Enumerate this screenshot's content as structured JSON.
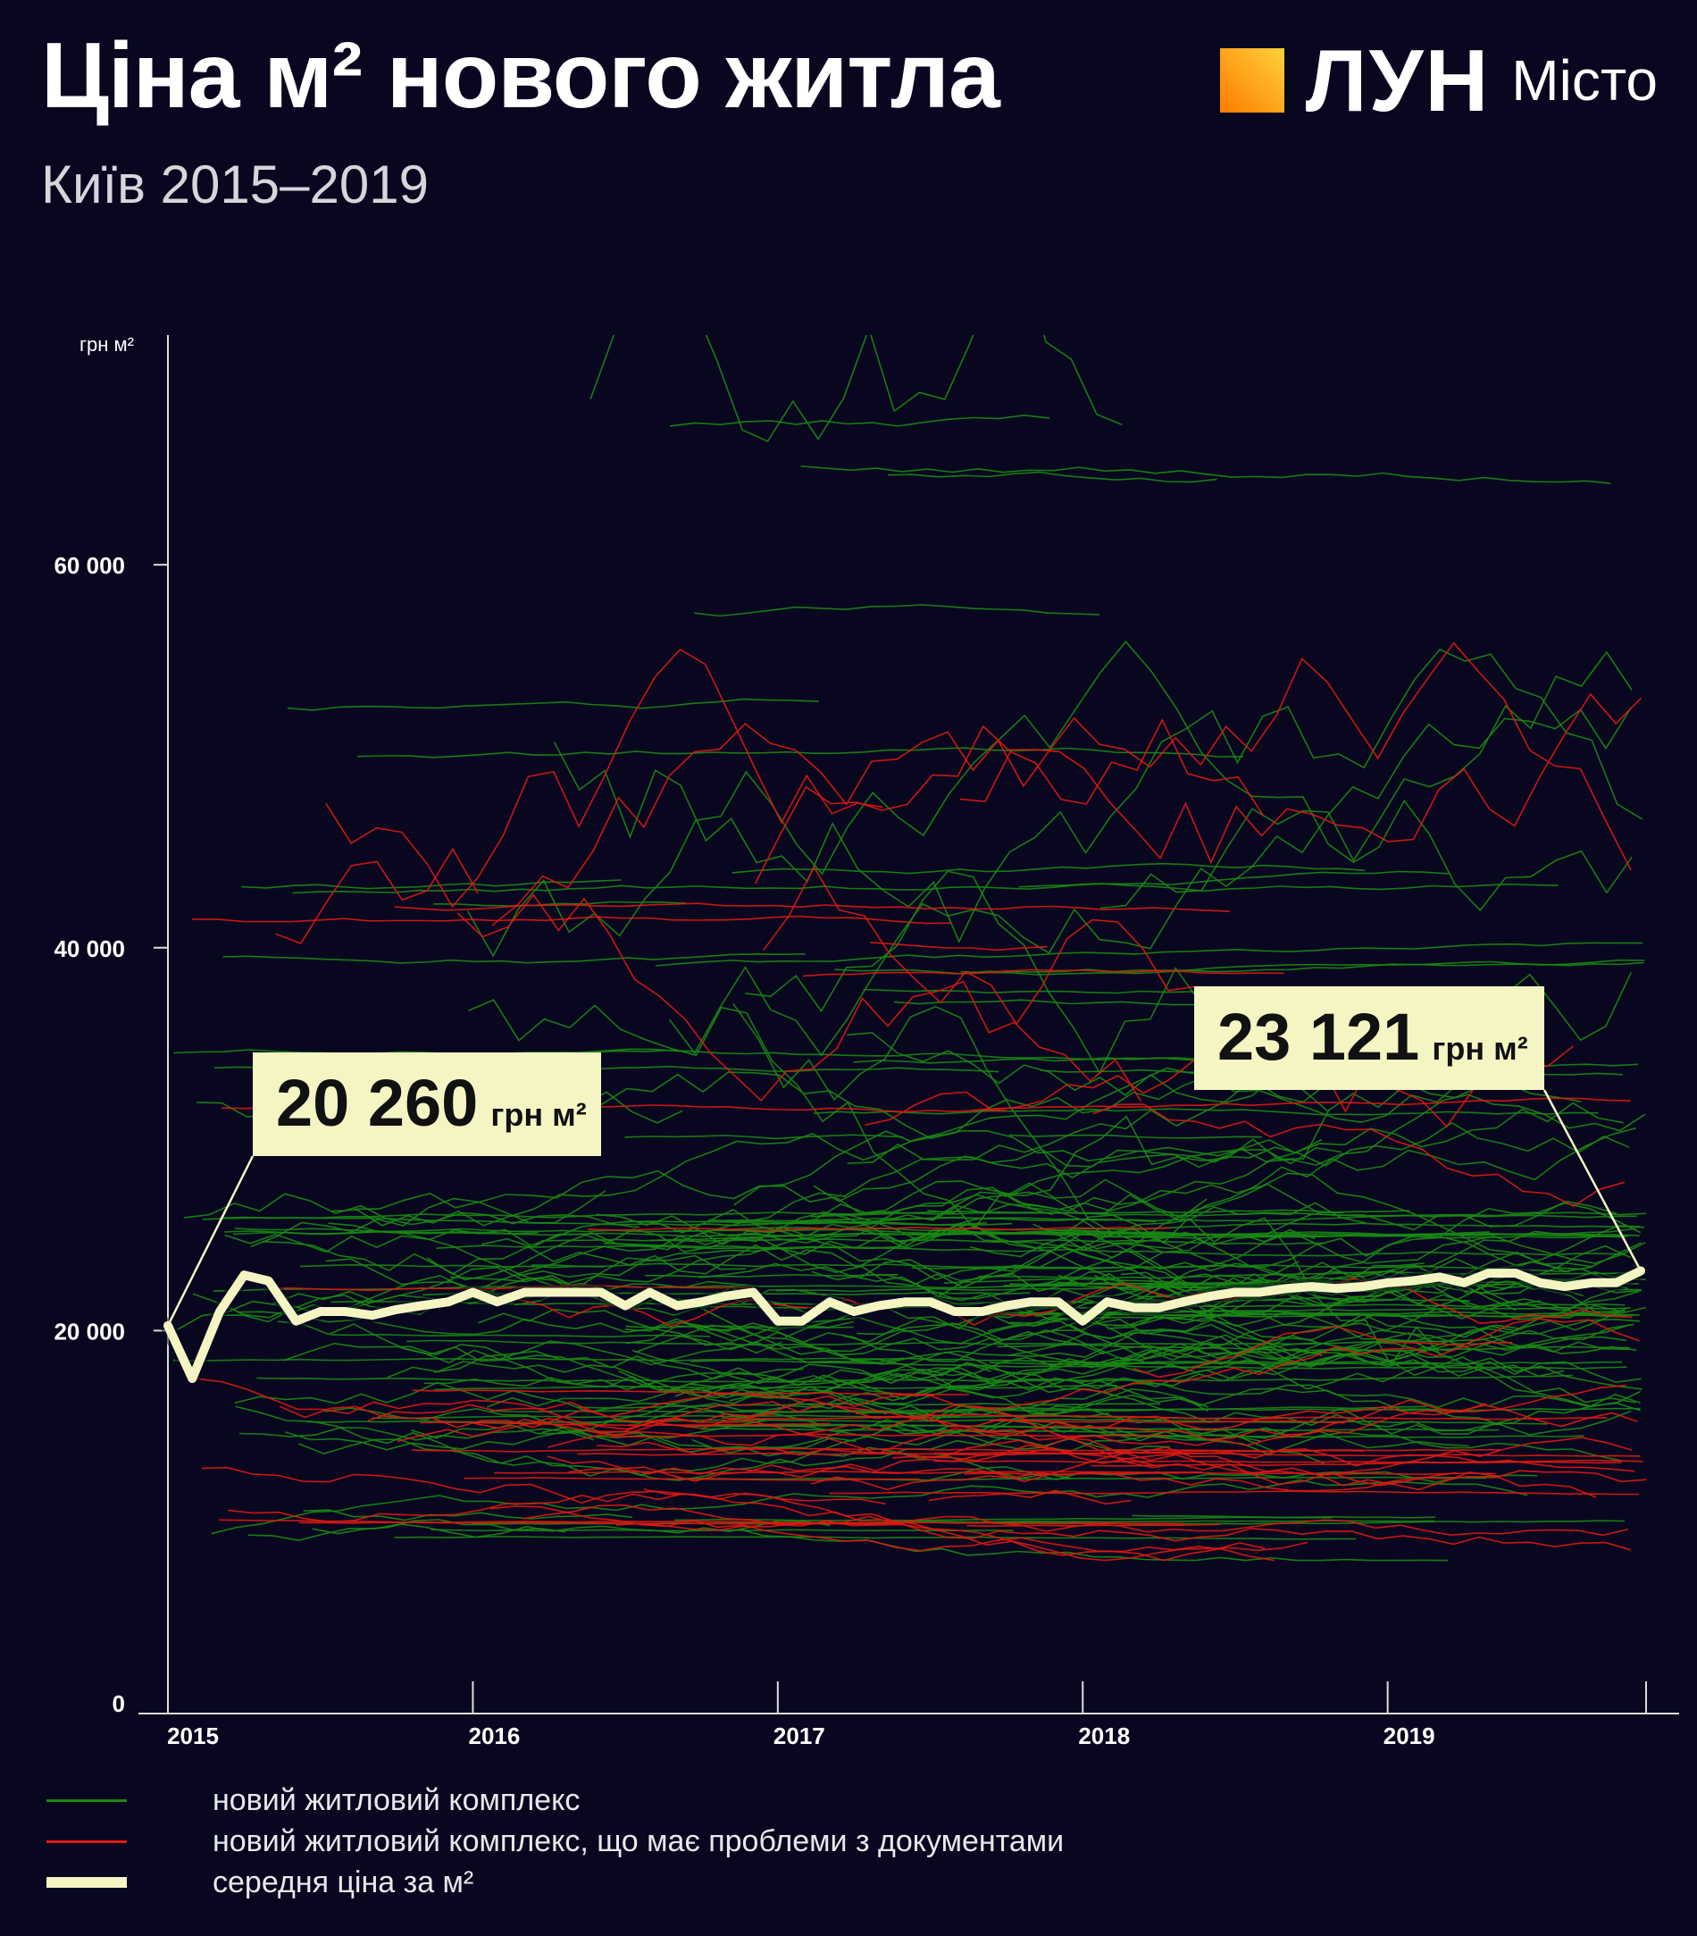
{
  "header": {
    "title": "Ціна м² нового житла",
    "subtitle": "Київ 2015–2019"
  },
  "logo": {
    "brand": "ЛУН",
    "city": "Місто",
    "colors": {
      "from": "#ff7b00",
      "to": "#ffd23a"
    }
  },
  "colors": {
    "green": "#1a8a12",
    "red": "#e01a10",
    "average": "#f5f5c4",
    "background": "#090720",
    "axis": "#dddddd"
  },
  "legend": {
    "items": [
      {
        "label": "новий житловий комплекс",
        "color": "#1a8a12",
        "kind": "thin"
      },
      {
        "label": "новий житловий комплекс, що має проблеми з документами",
        "color": "#e01a10",
        "kind": "thin"
      },
      {
        "label": "середня ціна за м²",
        "color": "#f5f5c4",
        "kind": "thick"
      }
    ]
  },
  "chart_data": {
    "type": "line",
    "title": "Ціна м² нового житла",
    "subtitle": "Київ 2015–2019",
    "ylabel": "грн м²",
    "ylim": [
      0,
      72000
    ],
    "xlim": [
      2015.0,
      2019.95
    ],
    "y_ticks": [
      {
        "value": 0,
        "label": "0"
      },
      {
        "value": 20000,
        "label": "20 000"
      },
      {
        "value": 40000,
        "label": "40 000"
      },
      {
        "value": 60000,
        "label": "60 000"
      }
    ],
    "x_ticks": [
      {
        "value": 2015,
        "label": "2015"
      },
      {
        "value": 2016,
        "label": "2016"
      },
      {
        "value": 2017,
        "label": "2017"
      },
      {
        "value": 2018,
        "label": "2018"
      },
      {
        "value": 2019,
        "label": "2019"
      }
    ],
    "grid": false,
    "legend_position": "bottom",
    "average_series": {
      "name": "середня ціна за м²",
      "x": [
        2015.0,
        2015.08,
        2015.17,
        2015.25,
        2015.33,
        2015.42,
        2015.5,
        2015.58,
        2015.67,
        2015.75,
        2015.83,
        2015.92,
        2016.0,
        2016.08,
        2016.17,
        2016.25,
        2016.33,
        2016.42,
        2016.5,
        2016.58,
        2016.67,
        2016.75,
        2016.83,
        2016.92,
        2017.0,
        2017.08,
        2017.17,
        2017.25,
        2017.33,
        2017.42,
        2017.5,
        2017.58,
        2017.67,
        2017.75,
        2017.83,
        2017.92,
        2018.0,
        2018.08,
        2018.17,
        2018.25,
        2018.33,
        2018.42,
        2018.5,
        2018.58,
        2018.67,
        2018.75,
        2018.83,
        2018.92,
        2019.0,
        2019.08,
        2019.17,
        2019.25,
        2019.33,
        2019.42,
        2019.5,
        2019.58,
        2019.67,
        2019.75,
        2019.83
      ],
      "values": [
        20260,
        17500,
        21000,
        22900,
        22600,
        20500,
        21000,
        21000,
        20800,
        21100,
        21300,
        21500,
        22000,
        21500,
        22000,
        22000,
        22000,
        22000,
        21300,
        22000,
        21300,
        21500,
        21800,
        22000,
        20500,
        20500,
        21500,
        21000,
        21300,
        21500,
        21500,
        21000,
        21000,
        21300,
        21500,
        21500,
        20500,
        21500,
        21200,
        21200,
        21500,
        21800,
        22000,
        22000,
        22200,
        22300,
        22200,
        22300,
        22500,
        22600,
        22800,
        22500,
        23000,
        23000,
        22500,
        22300,
        22500,
        22500,
        23121
      ]
    },
    "callouts": [
      {
        "value": "20 260",
        "unit": "грн м²",
        "x": 2015.0,
        "y": 20260
      },
      {
        "value": "23 121",
        "unit": "грн м²",
        "x": 2019.83,
        "y": 23121
      }
    ],
    "series_groups": [
      {
        "name": "новий житловий комплекс",
        "color": "#1a8a12",
        "count": 190,
        "range": [
          9000,
          75000
        ],
        "typical": 20000
      },
      {
        "name": "новий житловий комплекс, що має проблеми з документами",
        "color": "#e01a10",
        "count": 55,
        "range": [
          9000,
          72000
        ],
        "typical": 13000
      }
    ]
  }
}
